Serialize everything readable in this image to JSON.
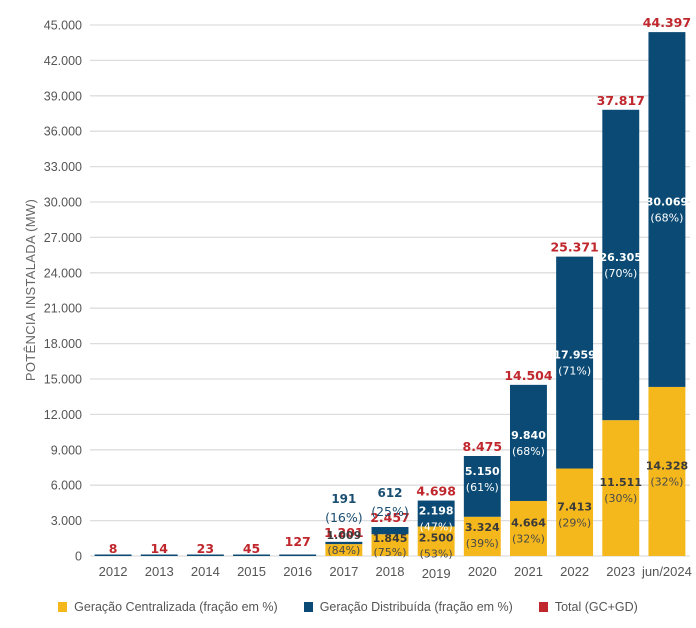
{
  "chart_data": {
    "type": "bar",
    "stacked": true,
    "title": "",
    "xlabel": "",
    "ylabel": "POTÊNCIA INSTALADA (MW)",
    "ylim": [
      0,
      45000
    ],
    "yticks": [
      0,
      3000,
      6000,
      9000,
      12000,
      15000,
      18000,
      21000,
      24000,
      27000,
      30000,
      33000,
      36000,
      39000,
      42000,
      45000
    ],
    "ytick_labels": [
      "0",
      "3.000",
      "6.000",
      "9.000",
      "12.000",
      "15.000",
      "18.000",
      "21.000",
      "24.000",
      "27.000",
      "30.000",
      "33.000",
      "36.000",
      "39.000",
      "42.000",
      "45.000"
    ],
    "grid": true,
    "legend_position": "bottom",
    "categories": [
      "2012",
      "2013",
      "2014",
      "2015",
      "2016",
      "2017",
      "2018",
      "2019",
      "2020",
      "2021",
      "2022",
      "2023",
      "jun/2024"
    ],
    "series": [
      {
        "name": "Geração Centralizada (fração em %)",
        "key": "gc",
        "color": "#f5b81c",
        "values": [
          0,
          0,
          0,
          0,
          0,
          1009,
          1845,
          2500,
          3324,
          4664,
          7413,
          11511,
          14328
        ],
        "value_labels": [
          "",
          "",
          "",
          "",
          "",
          "1.009",
          "1.845",
          "2.500",
          "3.324",
          "4.664",
          "7.413",
          "11.511",
          "14.328"
        ],
        "pct_labels": [
          "",
          "",
          "",
          "",
          "",
          "(84%)",
          "(75%)",
          "(53%)",
          "(39%)",
          "(32%)",
          "(29%)",
          "(30%)",
          "(32%)"
        ]
      },
      {
        "name": "Geração Distribuída (fração em %)",
        "key": "gd",
        "color": "#0b4a74",
        "values": [
          8,
          14,
          23,
          45,
          127,
          191,
          612,
          2198,
          5150,
          9840,
          17959,
          26305,
          30069
        ],
        "value_labels": [
          "",
          "",
          "",
          "",
          "",
          "191",
          "612",
          "2.198",
          "5.150",
          "9.840",
          "17.959",
          "26.305",
          "30.069"
        ],
        "pct_labels": [
          "",
          "",
          "",
          "",
          "",
          "(16%)",
          "(25%)",
          "(47%)",
          "(61%)",
          "(68%)",
          "(71%)",
          "(70%)",
          "(68%)"
        ]
      }
    ],
    "totals": {
      "name": "Total (GC+GD)",
      "color": "#c0272d",
      "values": [
        8,
        14,
        23,
        45,
        127,
        1201,
        2457,
        4698,
        8475,
        14504,
        25371,
        37817,
        44397
      ],
      "labels": [
        "8",
        "14",
        "23",
        "45",
        "127",
        "1.201",
        "2.457",
        "4.698",
        "8.475",
        "14.504",
        "25.371",
        "37.817",
        "44.397"
      ]
    }
  },
  "legend": {
    "items": [
      {
        "label": "Geração Centralizada (fração em %)",
        "color": "#f5b81c"
      },
      {
        "label": "Geração Distribuída (fração em %)",
        "color": "#0b4a74"
      },
      {
        "label": "Total (GC+GD)",
        "color": "#c0272d"
      }
    ]
  }
}
